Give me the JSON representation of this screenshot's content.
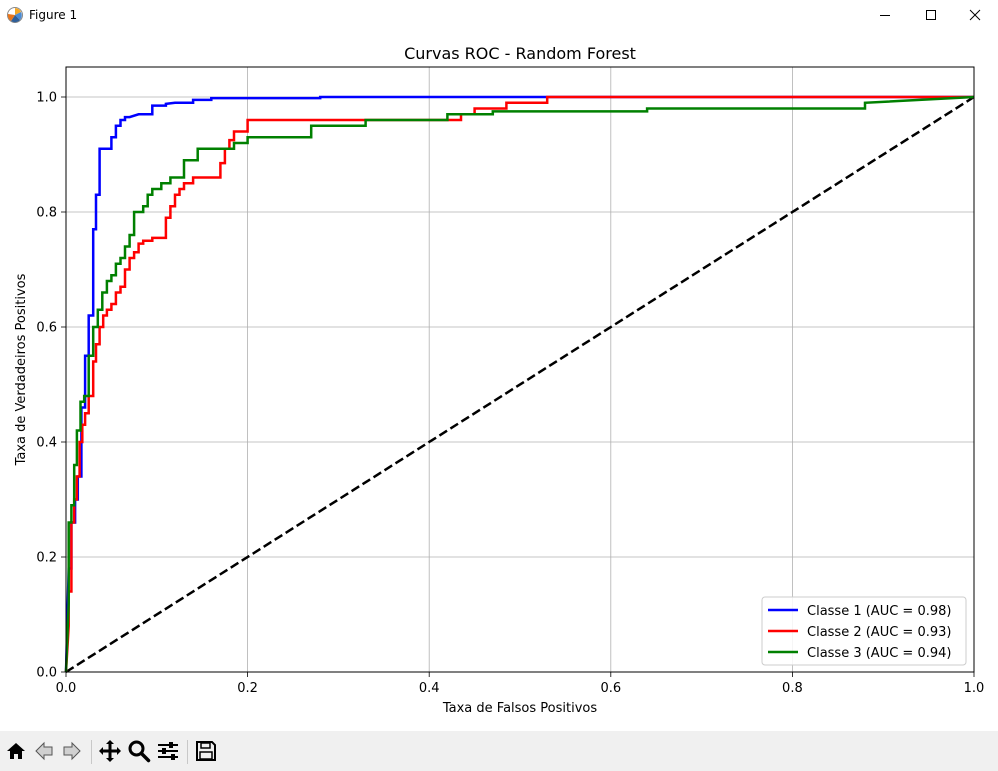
{
  "window": {
    "title": "Figure 1"
  },
  "toolbar": {
    "buttons": [
      {
        "name": "home-icon"
      },
      {
        "name": "back-icon"
      },
      {
        "name": "forward-icon"
      },
      {
        "name": "pan-icon"
      },
      {
        "name": "zoom-icon"
      },
      {
        "name": "configure-subplots-icon"
      },
      {
        "name": "save-icon"
      }
    ]
  },
  "chart_data": {
    "type": "line",
    "title": "Curvas ROC - Random Forest",
    "xlabel": "Taxa de Falsos Positivos",
    "ylabel": "Taxa de Verdadeiros Positivos",
    "xlim": [
      0.0,
      1.0
    ],
    "ylim": [
      0.0,
      1.0
    ],
    "xticks": [
      "0.0",
      "0.2",
      "0.4",
      "0.6",
      "0.8",
      "1.0"
    ],
    "yticks": [
      "0.0",
      "0.2",
      "0.4",
      "0.6",
      "0.8",
      "1.0"
    ],
    "grid": true,
    "legend_position": "lower-right",
    "series": [
      {
        "name": "Classe 1 (AUC = 0.98)",
        "color": "#0000ff",
        "x": [
          0.0,
          0.003,
          0.006,
          0.006,
          0.01,
          0.01,
          0.013,
          0.013,
          0.017,
          0.017,
          0.021,
          0.021,
          0.025,
          0.025,
          0.03,
          0.03,
          0.033,
          0.033,
          0.037,
          0.037,
          0.041,
          0.041,
          0.045,
          0.045,
          0.05,
          0.05,
          0.055,
          0.055,
          0.06,
          0.06,
          0.065,
          0.065,
          0.07,
          0.08,
          0.095,
          0.095,
          0.11,
          0.11,
          0.12,
          0.14,
          0.14,
          0.16,
          0.16,
          0.28,
          0.28,
          0.53,
          0.53,
          1.0
        ],
        "y": [
          0.0,
          0.18,
          0.18,
          0.26,
          0.26,
          0.3,
          0.3,
          0.34,
          0.34,
          0.46,
          0.46,
          0.55,
          0.55,
          0.62,
          0.62,
          0.77,
          0.77,
          0.83,
          0.83,
          0.91,
          0.91,
          0.91,
          0.91,
          0.91,
          0.91,
          0.93,
          0.93,
          0.95,
          0.95,
          0.96,
          0.96,
          0.965,
          0.965,
          0.97,
          0.97,
          0.985,
          0.985,
          0.988,
          0.99,
          0.99,
          0.995,
          0.995,
          0.998,
          0.998,
          1.0,
          1.0,
          1.0,
          1.0
        ]
      },
      {
        "name": "Classe 2 (AUC = 0.93)",
        "color": "#ff0000",
        "x": [
          0.0,
          0.003,
          0.003,
          0.006,
          0.006,
          0.009,
          0.009,
          0.012,
          0.012,
          0.015,
          0.015,
          0.018,
          0.018,
          0.021,
          0.021,
          0.025,
          0.025,
          0.03,
          0.03,
          0.033,
          0.033,
          0.037,
          0.037,
          0.041,
          0.041,
          0.045,
          0.045,
          0.05,
          0.05,
          0.055,
          0.055,
          0.06,
          0.06,
          0.065,
          0.065,
          0.07,
          0.07,
          0.075,
          0.075,
          0.08,
          0.08,
          0.085,
          0.085,
          0.095,
          0.095,
          0.11,
          0.11,
          0.115,
          0.115,
          0.12,
          0.12,
          0.125,
          0.125,
          0.13,
          0.13,
          0.14,
          0.14,
          0.17,
          0.17,
          0.175,
          0.175,
          0.18,
          0.18,
          0.185,
          0.185,
          0.2,
          0.2,
          0.215,
          0.215,
          0.435,
          0.435,
          0.45,
          0.45,
          0.485,
          0.485,
          0.53,
          0.53,
          1.0
        ],
        "y": [
          0.0,
          0.08,
          0.14,
          0.14,
          0.26,
          0.26,
          0.3,
          0.3,
          0.34,
          0.34,
          0.4,
          0.4,
          0.43,
          0.43,
          0.45,
          0.45,
          0.48,
          0.48,
          0.54,
          0.54,
          0.57,
          0.57,
          0.6,
          0.6,
          0.62,
          0.62,
          0.63,
          0.63,
          0.64,
          0.64,
          0.66,
          0.66,
          0.67,
          0.67,
          0.7,
          0.7,
          0.72,
          0.72,
          0.73,
          0.73,
          0.745,
          0.745,
          0.75,
          0.75,
          0.755,
          0.755,
          0.79,
          0.79,
          0.81,
          0.81,
          0.83,
          0.83,
          0.84,
          0.84,
          0.85,
          0.85,
          0.86,
          0.86,
          0.885,
          0.885,
          0.91,
          0.91,
          0.925,
          0.925,
          0.94,
          0.94,
          0.96,
          0.96,
          0.96,
          0.96,
          0.97,
          0.97,
          0.98,
          0.98,
          0.99,
          0.99,
          1.0,
          1.0
        ]
      },
      {
        "name": "Classe 3 (AUC = 0.94)",
        "color": "#008000",
        "x": [
          0.0,
          0.003,
          0.003,
          0.006,
          0.006,
          0.009,
          0.009,
          0.012,
          0.012,
          0.016,
          0.016,
          0.02,
          0.02,
          0.025,
          0.025,
          0.03,
          0.03,
          0.035,
          0.035,
          0.04,
          0.04,
          0.045,
          0.045,
          0.05,
          0.05,
          0.055,
          0.055,
          0.06,
          0.06,
          0.065,
          0.065,
          0.07,
          0.07,
          0.075,
          0.075,
          0.085,
          0.085,
          0.09,
          0.09,
          0.095,
          0.095,
          0.105,
          0.105,
          0.115,
          0.115,
          0.13,
          0.13,
          0.145,
          0.145,
          0.185,
          0.185,
          0.2,
          0.2,
          0.27,
          0.27,
          0.33,
          0.33,
          0.42,
          0.42,
          0.47,
          0.47,
          0.64,
          0.64,
          0.88,
          0.88,
          1.0
        ],
        "y": [
          0.0,
          0.12,
          0.26,
          0.26,
          0.29,
          0.29,
          0.36,
          0.36,
          0.42,
          0.42,
          0.47,
          0.47,
          0.48,
          0.48,
          0.55,
          0.55,
          0.6,
          0.6,
          0.63,
          0.63,
          0.66,
          0.66,
          0.68,
          0.68,
          0.69,
          0.69,
          0.71,
          0.71,
          0.72,
          0.72,
          0.74,
          0.74,
          0.76,
          0.76,
          0.8,
          0.8,
          0.81,
          0.81,
          0.83,
          0.83,
          0.84,
          0.84,
          0.85,
          0.85,
          0.86,
          0.86,
          0.89,
          0.89,
          0.91,
          0.91,
          0.92,
          0.92,
          0.93,
          0.93,
          0.95,
          0.95,
          0.96,
          0.96,
          0.97,
          0.97,
          0.975,
          0.975,
          0.98,
          0.98,
          0.99,
          1.0
        ]
      },
      {
        "name": "",
        "color": "#000000",
        "dashed": true,
        "in_legend": false,
        "x": [
          0.0,
          1.0
        ],
        "y": [
          0.0,
          1.0
        ]
      }
    ]
  }
}
